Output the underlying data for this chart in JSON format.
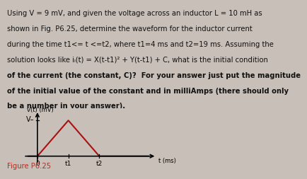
{
  "text_lines": [
    "Using V = 9 mV, and given the voltage across an inductor L = 10 mH as",
    "shown in Fig. P6.25, determine the waveform for the inductor current",
    "during the time t1<= t <=t2, where t1=4 ms and t2=19 ms. Assuming the",
    "solution looks like iₗ(t) = X(t-t1)² + Y(t-t1) + C, what is the initial condition",
    "of the current (the constant, C)?  For your answer just put the magnitude",
    "of the initial value of the constant and in milliAmps (there should only",
    "be a number in your answer)."
  ],
  "bold_start_word": "For your answer just put the magnitude",
  "fig_caption": "Figure P6.25",
  "fig_caption_color": "#b03020",
  "ylabel": "v(t) (mV)",
  "xlabel": "t (ms)",
  "v_label": "V–",
  "x_tick_labels": [
    "0",
    "t1",
    "t2"
  ],
  "waveform_x": [
    -0.3,
    0.0,
    1.0,
    2.0,
    3.6
  ],
  "waveform_y": [
    0.0,
    0.0,
    1.0,
    0.0,
    0.0
  ],
  "waveform_color": "#aa1111",
  "bg_color": "#c8c0b8",
  "text_color": "#111111",
  "text_fontsize": 7.2,
  "underline_words": [
    "inductor current"
  ]
}
